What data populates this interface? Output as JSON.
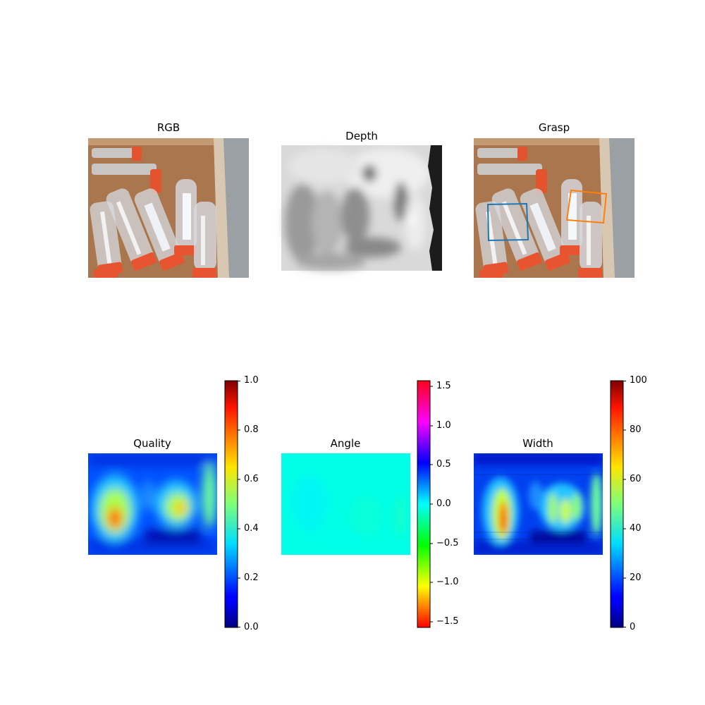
{
  "panels": {
    "rgb": {
      "title": "RGB"
    },
    "depth": {
      "title": "Depth"
    },
    "grasp": {
      "title": "Grasp",
      "box_colors": [
        "#1f77b4",
        "#ff7f0e"
      ]
    },
    "quality": {
      "title": "Quality"
    },
    "angle": {
      "title": "Angle"
    },
    "width": {
      "title": "Width"
    }
  },
  "chart_data": [
    {
      "type": "heatmap",
      "title": "Quality",
      "colormap": "jet",
      "colorbar": {
        "range": [
          0.0,
          1.0
        ],
        "ticks": [
          "0.0",
          "0.2",
          "0.4",
          "0.6",
          "0.8",
          "1.0"
        ]
      },
      "peak_value": 0.78
    },
    {
      "type": "heatmap",
      "title": "Angle",
      "colormap": "hsv",
      "colorbar": {
        "range": [
          -1.5708,
          1.5708
        ],
        "ticks": [
          "−1.5",
          "−1.0",
          "−0.5",
          "0.0",
          "0.5",
          "1.0",
          "1.5"
        ]
      },
      "typical_value": 0.02
    },
    {
      "type": "heatmap",
      "title": "Width",
      "colormap": "jet",
      "colorbar": {
        "range": [
          0,
          100
        ],
        "ticks": [
          "0",
          "20",
          "40",
          "60",
          "80",
          "100"
        ]
      },
      "peak_value": 85
    }
  ]
}
